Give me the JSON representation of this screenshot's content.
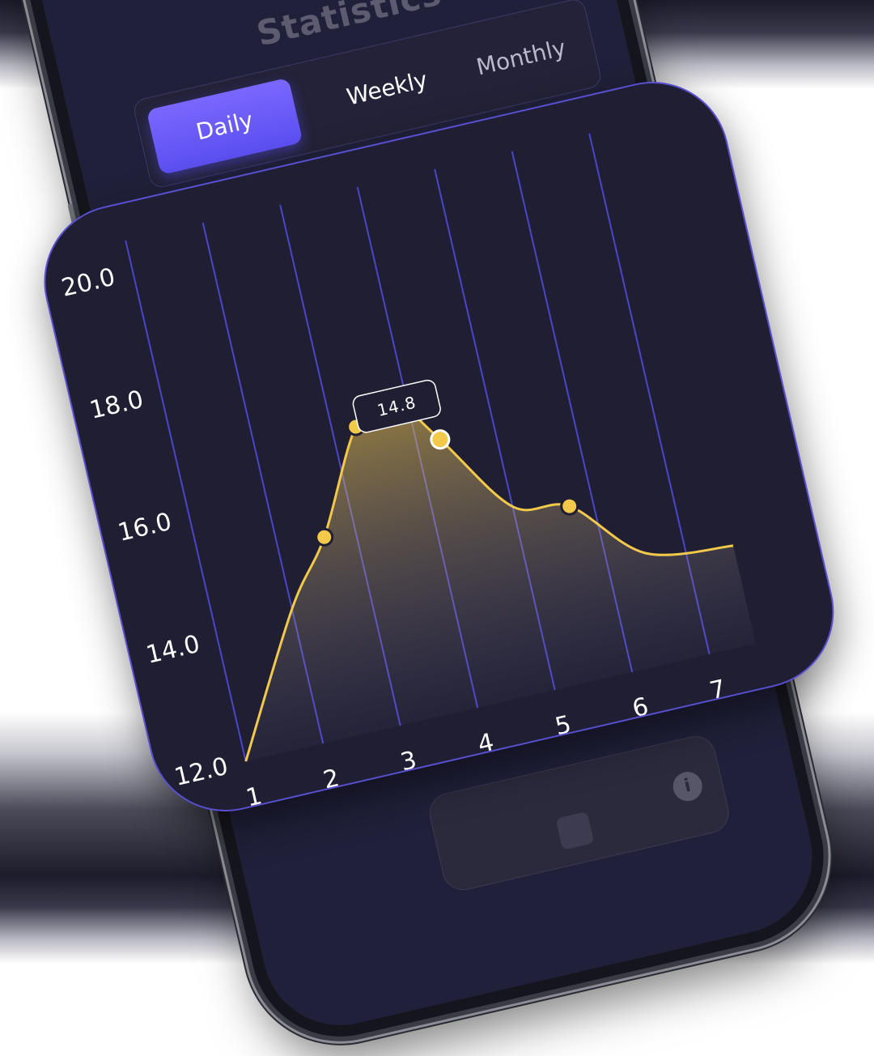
{
  "app": {
    "title": "Statistics"
  },
  "tabs": [
    {
      "label": "Daily",
      "active": true
    },
    {
      "label": "Weekly",
      "active": false
    },
    {
      "label": "Monthly",
      "active": false
    }
  ],
  "icons": {
    "info": "info-icon",
    "puzzle": "puzzle-icon"
  },
  "colors": {
    "accent": "#6a5cf6",
    "line": "#f3c94b",
    "grid": "#4b46c9",
    "card": "#1f1e33"
  },
  "tooltip": {
    "value": "14.8"
  },
  "chart_data": {
    "type": "area",
    "x": [
      1,
      2,
      3,
      4,
      5,
      6,
      7
    ],
    "y_ticks": [
      "12.0",
      "14.0",
      "16.0",
      "18.0",
      "20.0"
    ],
    "ylim": [
      12,
      20
    ],
    "curve": [
      {
        "x": 1.0,
        "y": 12.0
      },
      {
        "x": 2.0,
        "y": 14.2
      },
      {
        "x": 2.6,
        "y": 15.2
      },
      {
        "x": 3.3,
        "y": 16.8
      },
      {
        "x": 3.8,
        "y": 17.1
      },
      {
        "x": 4.3,
        "y": 16.3
      },
      {
        "x": 5.0,
        "y": 15.0
      },
      {
        "x": 5.7,
        "y": 14.8
      },
      {
        "x": 6.5,
        "y": 13.8
      },
      {
        "x": 7.6,
        "y": 13.6
      }
    ],
    "markers": [
      {
        "x": 2.6,
        "y": 15.2
      },
      {
        "x": 3.3,
        "y": 16.8
      },
      {
        "x": 4.3,
        "y": 16.3,
        "selected": true
      },
      {
        "x": 5.7,
        "y": 14.8
      }
    ],
    "grid": true,
    "xlabel": "",
    "ylabel": ""
  }
}
